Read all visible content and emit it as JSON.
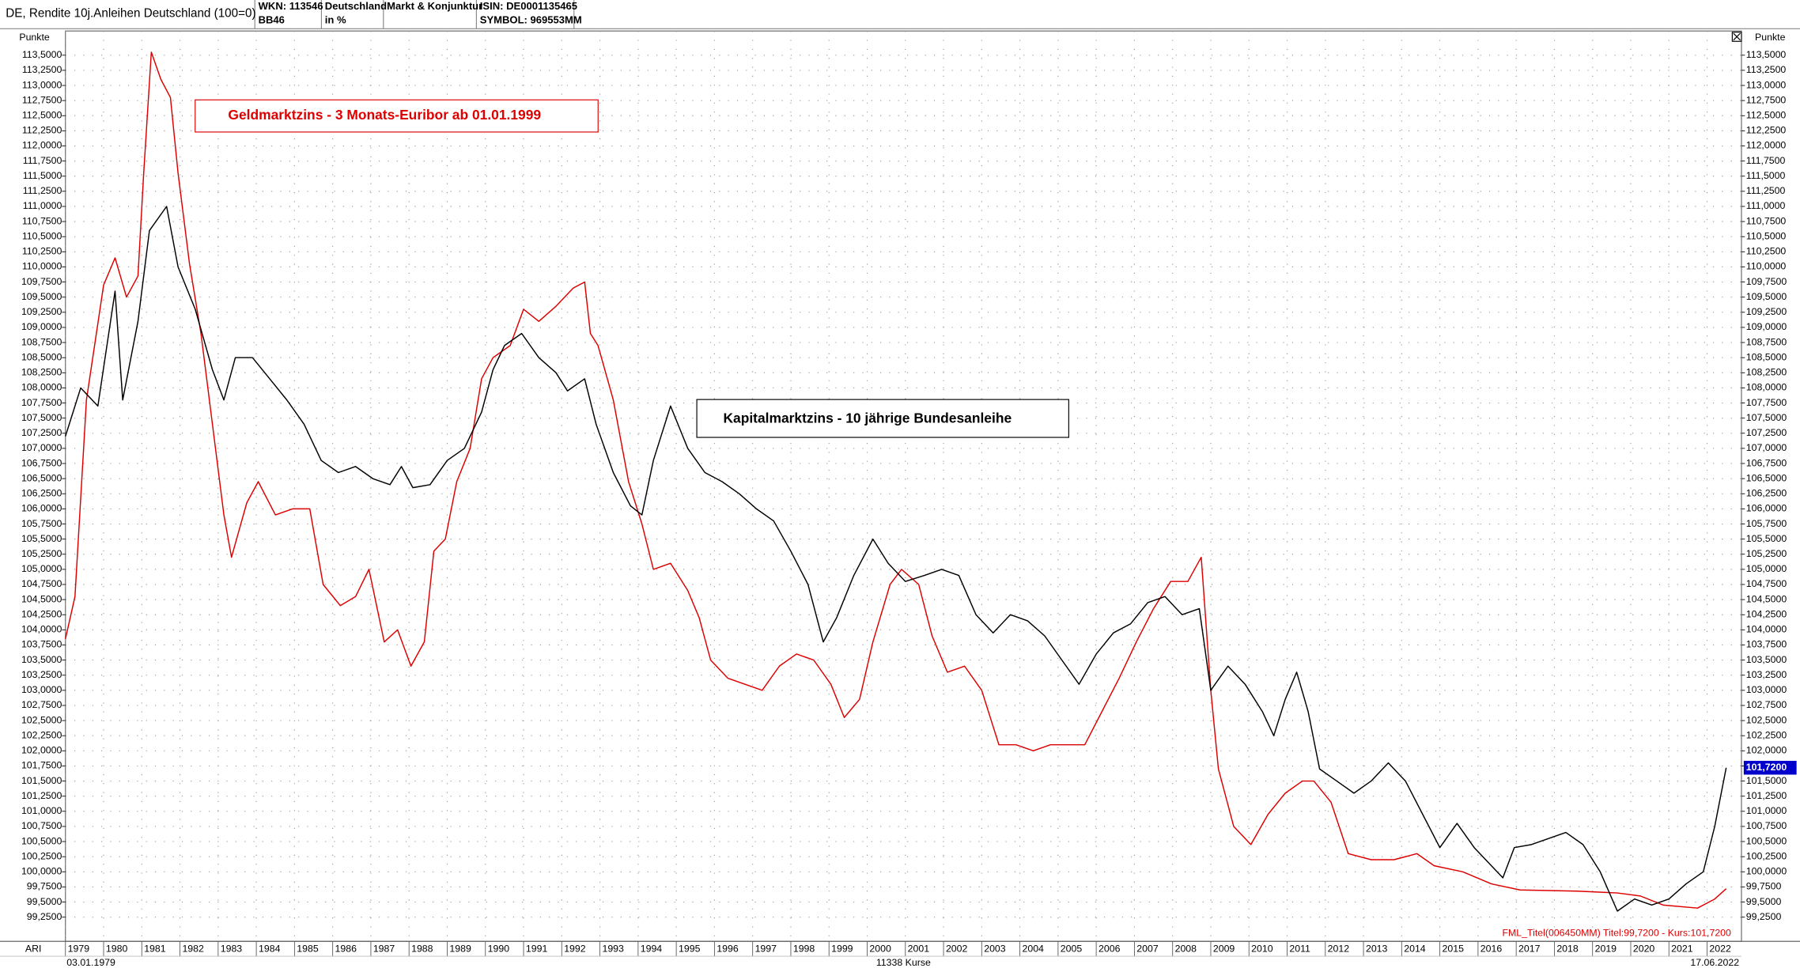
{
  "header": {
    "title": "DE, Rendite 10j.Anleihen Deutschland (100=0)",
    "wkn": "WKN: 113546",
    "code": "BB46",
    "country": "Deutschland",
    "unit": "in %",
    "category": "Markt & Konjunktur",
    "isin": "ISIN: DE0001135465",
    "symbol": "SYMBOL: 969553MM"
  },
  "footer": {
    "left": "ARI",
    "start_date": "03.01.1979",
    "count": "11338 Kurse",
    "end_date": "17.06.2022",
    "legend": "FML_Titel(006450MM) Titel:99,7200 - Kurs:101,7200"
  },
  "chart_data": {
    "type": "line",
    "y_axis_label": "Punkte",
    "annotations": [
      "Geldmarktzins - 3 Monats-Euribor ab 01.01.1999",
      "Kapitalmarktzins - 10 jährige Bundesanleihe"
    ],
    "last_label": {
      "value": 101.72,
      "label": "101,7200"
    },
    "grid": true,
    "xlim": [
      1979,
      2022.9
    ],
    "ylim": [
      98.85,
      113.9
    ],
    "xticks": [
      1979,
      1980,
      1981,
      1982,
      1983,
      1984,
      1985,
      1986,
      1987,
      1988,
      1989,
      1990,
      1991,
      1992,
      1993,
      1994,
      1995,
      1996,
      1997,
      1998,
      1999,
      2000,
      2001,
      2002,
      2003,
      2004,
      2005,
      2006,
      2007,
      2008,
      2009,
      2010,
      2011,
      2012,
      2013,
      2014,
      2015,
      2016,
      2017,
      2018,
      2019,
      2020,
      2021,
      2022
    ],
    "yticks": [
      {
        "value": 99.25,
        "label": "99,2500"
      },
      {
        "value": 99.5,
        "label": "99,5000"
      },
      {
        "value": 99.75,
        "label": "99,7500"
      },
      {
        "value": 100,
        "label": "100,0000"
      },
      {
        "value": 100.25,
        "label": "100,2500"
      },
      {
        "value": 100.5,
        "label": "100,5000"
      },
      {
        "value": 100.75,
        "label": "100,7500"
      },
      {
        "value": 101,
        "label": "101,0000"
      },
      {
        "value": 101.25,
        "label": "101,2500"
      },
      {
        "value": 101.5,
        "label": "101,5000"
      },
      {
        "value": 101.75,
        "label": "101,7500"
      },
      {
        "value": 102,
        "label": "102,0000"
      },
      {
        "value": 102.25,
        "label": "102,2500"
      },
      {
        "value": 102.5,
        "label": "102,5000"
      },
      {
        "value": 102.75,
        "label": "102,7500"
      },
      {
        "value": 103,
        "label": "103,0000"
      },
      {
        "value": 103.25,
        "label": "103,2500"
      },
      {
        "value": 103.5,
        "label": "103,5000"
      },
      {
        "value": 103.75,
        "label": "103,7500"
      },
      {
        "value": 104,
        "label": "104,0000"
      },
      {
        "value": 104.25,
        "label": "104,2500"
      },
      {
        "value": 104.5,
        "label": "104,5000"
      },
      {
        "value": 104.75,
        "label": "104,7500"
      },
      {
        "value": 105,
        "label": "105,0000"
      },
      {
        "value": 105.25,
        "label": "105,2500"
      },
      {
        "value": 105.5,
        "label": "105,5000"
      },
      {
        "value": 105.75,
        "label": "105,7500"
      },
      {
        "value": 106,
        "label": "106,0000"
      },
      {
        "value": 106.25,
        "label": "106,2500"
      },
      {
        "value": 106.5,
        "label": "106,5000"
      },
      {
        "value": 106.75,
        "label": "106,7500"
      },
      {
        "value": 107,
        "label": "107,0000"
      },
      {
        "value": 107.25,
        "label": "107,2500"
      },
      {
        "value": 107.5,
        "label": "107,5000"
      },
      {
        "value": 107.75,
        "label": "107,7500"
      },
      {
        "value": 108,
        "label": "108,0000"
      },
      {
        "value": 108.25,
        "label": "108,2500"
      },
      {
        "value": 108.5,
        "label": "108,5000"
      },
      {
        "value": 108.75,
        "label": "108,7500"
      },
      {
        "value": 109,
        "label": "109,0000"
      },
      {
        "value": 109.25,
        "label": "109,2500"
      },
      {
        "value": 109.5,
        "label": "109,5000"
      },
      {
        "value": 109.75,
        "label": "109,7500"
      },
      {
        "value": 110,
        "label": "110,0000"
      },
      {
        "value": 110.25,
        "label": "110,2500"
      },
      {
        "value": 110.5,
        "label": "110,5000"
      },
      {
        "value": 110.75,
        "label": "110,7500"
      },
      {
        "value": 111,
        "label": "111,0000"
      },
      {
        "value": 111.25,
        "label": "111,2500"
      },
      {
        "value": 111.5,
        "label": "111,5000"
      },
      {
        "value": 111.75,
        "label": "111,7500"
      },
      {
        "value": 112,
        "label": "112,0000"
      },
      {
        "value": 112.25,
        "label": "112,2500"
      },
      {
        "value": 112.5,
        "label": "112,5000"
      },
      {
        "value": 112.75,
        "label": "112,7500"
      },
      {
        "value": 113,
        "label": "113,0000"
      },
      {
        "value": 113.25,
        "label": "113,2500"
      },
      {
        "value": 113.5,
        "label": "113,5000"
      }
    ],
    "series": [
      {
        "color": "#000000",
        "x": [
          1979.0,
          1979.4,
          1979.85,
          1980.3,
          1980.5,
          1980.9,
          1981.2,
          1981.65,
          1981.95,
          1982.4,
          1982.85,
          1983.15,
          1983.45,
          1983.9,
          1984.35,
          1984.8,
          1985.25,
          1985.7,
          1986.15,
          1986.6,
          1987.05,
          1987.5,
          1987.8,
          1988.1,
          1988.55,
          1989.0,
          1989.45,
          1989.9,
          1990.2,
          1990.5,
          1990.95,
          1991.4,
          1991.85,
          1992.15,
          1992.6,
          1992.9,
          1993.35,
          1993.8,
          1994.1,
          1994.4,
          1994.85,
          1995.3,
          1995.75,
          1996.2,
          1996.65,
          1997.1,
          1997.55,
          1998.0,
          1998.45,
          1998.85,
          1999.2,
          1999.65,
          2000.15,
          2000.55,
          2001.0,
          2001.5,
          2001.95,
          2002.4,
          2002.85,
          2003.3,
          2003.75,
          2004.2,
          2004.65,
          2005.1,
          2005.55,
          2006.0,
          2006.45,
          2006.9,
          2007.35,
          2007.8,
          2008.25,
          2008.7,
          2009.0,
          2009.45,
          2009.9,
          2010.35,
          2010.65,
          2010.95,
          2011.25,
          2011.55,
          2011.85,
          2012.3,
          2012.75,
          2013.2,
          2013.65,
          2014.1,
          2014.55,
          2015.0,
          2015.45,
          2015.9,
          2016.35,
          2016.65,
          2016.95,
          2017.4,
          2017.85,
          2018.3,
          2018.75,
          2019.2,
          2019.65,
          2020.1,
          2020.55,
          2021.0,
          2021.45,
          2021.9,
          2022.2,
          2022.5
        ],
        "values": [
          107.2,
          108.0,
          107.7,
          109.6,
          107.8,
          109.1,
          110.6,
          111.0,
          110.0,
          109.3,
          108.3,
          107.8,
          108.5,
          108.5,
          108.15,
          107.8,
          107.4,
          106.8,
          106.6,
          106.7,
          106.5,
          106.4,
          106.7,
          106.35,
          106.4,
          106.8,
          107.0,
          107.6,
          108.3,
          108.7,
          108.9,
          108.5,
          108.25,
          107.95,
          108.15,
          107.4,
          106.6,
          106.05,
          105.9,
          106.8,
          107.7,
          107.0,
          106.6,
          106.45,
          106.25,
          106.0,
          105.8,
          105.3,
          104.75,
          103.8,
          104.2,
          104.9,
          105.5,
          105.1,
          104.8,
          104.9,
          105.0,
          104.9,
          104.25,
          103.95,
          104.25,
          104.15,
          103.9,
          103.5,
          103.1,
          103.6,
          103.95,
          104.1,
          104.45,
          104.55,
          104.25,
          104.35,
          103.0,
          103.4,
          103.1,
          102.65,
          102.25,
          102.85,
          103.3,
          102.65,
          101.7,
          101.5,
          101.3,
          101.5,
          101.8,
          101.5,
          100.95,
          100.4,
          100.8,
          100.4,
          100.1,
          99.9,
          100.4,
          100.45,
          100.55,
          100.65,
          100.45,
          100.0,
          99.35,
          99.55,
          99.45,
          99.55,
          99.8,
          100.0,
          100.75,
          101.72
        ]
      },
      {
        "color": "#dd0000",
        "x": [
          1979.0,
          1979.25,
          1979.55,
          1980.0,
          1980.3,
          1980.6,
          1980.9,
          1981.05,
          1981.25,
          1981.5,
          1981.75,
          1981.95,
          1982.25,
          1982.55,
          1982.85,
          1983.15,
          1983.35,
          1983.75,
          1984.05,
          1984.5,
          1984.95,
          1985.4,
          1985.75,
          1986.2,
          1986.6,
          1986.95,
          1987.35,
          1987.7,
          1988.05,
          1988.4,
          1988.65,
          1988.95,
          1989.25,
          1989.6,
          1989.9,
          1990.2,
          1990.65,
          1991.0,
          1991.4,
          1991.85,
          1992.3,
          1992.6,
          1992.75,
          1992.95,
          1993.35,
          1993.75,
          1994.1,
          1994.4,
          1994.85,
          1995.3,
          1995.6,
          1995.9,
          1996.35,
          1996.8,
          1997.25,
          1997.7,
          1998.15,
          1998.6,
          1999.05,
          1999.4,
          1999.8,
          2000.15,
          2000.6,
          2000.9,
          2001.35,
          2001.7,
          2002.1,
          2002.55,
          2003.0,
          2003.45,
          2003.9,
          2004.35,
          2004.8,
          2005.25,
          2005.7,
          2006.15,
          2006.6,
          2007.05,
          2007.5,
          2007.95,
          2008.4,
          2008.75,
          2009.0,
          2009.2,
          2009.6,
          2010.05,
          2010.5,
          2010.95,
          2011.4,
          2011.7,
          2012.15,
          2012.6,
          2013.2,
          2013.8,
          2014.4,
          2014.85,
          2015.6,
          2016.35,
          2017.1,
          2018.6,
          2019.65,
          2020.25,
          2020.85,
          2021.75,
          2022.2,
          2022.5
        ],
        "values": [
          103.85,
          104.55,
          107.8,
          109.7,
          110.15,
          109.5,
          109.85,
          111.55,
          113.55,
          113.1,
          112.8,
          111.55,
          110.05,
          108.9,
          107.4,
          105.9,
          105.2,
          106.1,
          106.45,
          105.9,
          106.0,
          106.0,
          104.75,
          104.4,
          104.55,
          105.0,
          103.8,
          104.0,
          103.4,
          103.8,
          105.3,
          105.5,
          106.45,
          107.0,
          108.15,
          108.5,
          108.7,
          109.3,
          109.1,
          109.35,
          109.65,
          109.75,
          108.9,
          108.7,
          107.8,
          106.45,
          105.75,
          105.0,
          105.1,
          104.65,
          104.2,
          103.5,
          103.2,
          103.1,
          103.0,
          103.4,
          103.6,
          103.5,
          103.1,
          102.55,
          102.85,
          103.8,
          104.75,
          105.0,
          104.75,
          103.9,
          103.3,
          103.4,
          103.0,
          102.1,
          102.1,
          102.0,
          102.1,
          102.1,
          102.1,
          102.65,
          103.2,
          103.8,
          104.35,
          104.8,
          104.8,
          105.2,
          103.0,
          101.7,
          100.75,
          100.45,
          100.95,
          101.3,
          101.5,
          101.5,
          101.15,
          100.3,
          100.2,
          100.2,
          100.3,
          100.1,
          100.0,
          99.8,
          99.7,
          99.68,
          99.65,
          99.6,
          99.45,
          99.4,
          99.55,
          99.72
        ]
      }
    ]
  }
}
